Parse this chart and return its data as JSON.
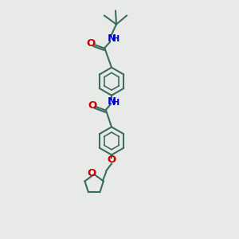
{
  "bg_color": "#e8eae8",
  "bond_color": "#3d6b5e",
  "o_color": "#cc0000",
  "n_color": "#0000cc",
  "lw": 1.5,
  "fs": 8.5,
  "xlim": [
    0,
    10
  ],
  "ylim": [
    0,
    15
  ],
  "figsize": [
    3.0,
    3.0
  ],
  "dpi": 100
}
